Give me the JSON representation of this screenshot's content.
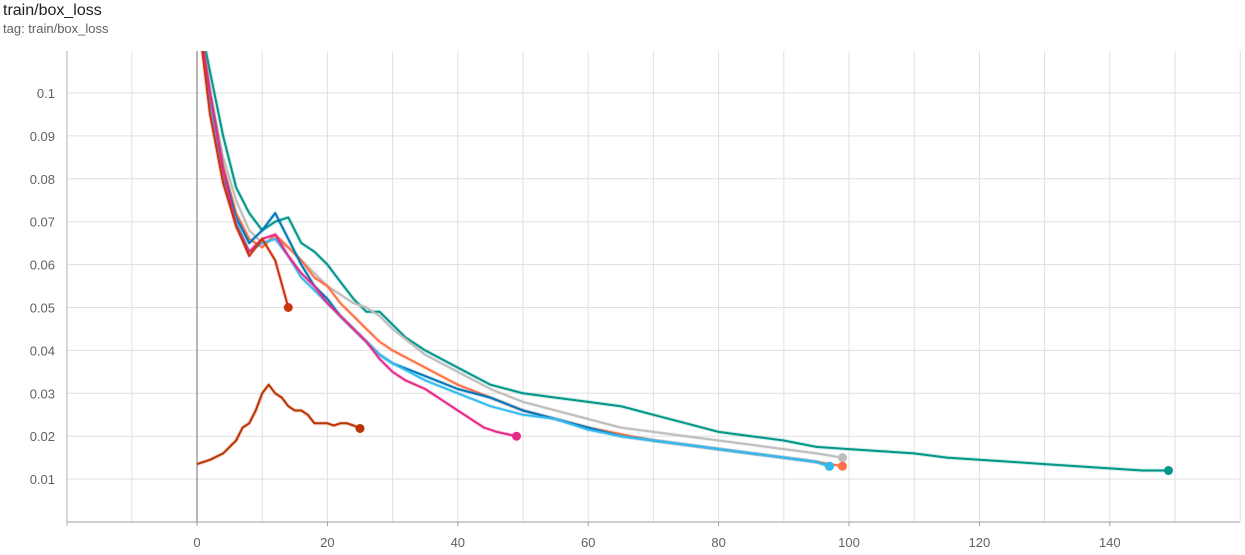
{
  "title": "train/box_loss",
  "tag": "tag: train/box_loss",
  "chart_data": {
    "type": "line",
    "xlim": [
      -20,
      160
    ],
    "ylim": [
      0,
      0.11
    ],
    "x_ticks": [
      0,
      20,
      40,
      60,
      80,
      100,
      120,
      140
    ],
    "x_tick_labels": [
      "0",
      "20",
      "40",
      "60",
      "80",
      "100",
      "120",
      "140"
    ],
    "y_ticks": [
      0.01,
      0.02,
      0.03,
      0.04,
      0.05,
      0.06,
      0.07,
      0.08,
      0.09,
      0.1
    ],
    "y_tick_labels": [
      "0.01",
      "0.02",
      "0.03",
      "0.04",
      "0.05",
      "0.06",
      "0.07",
      "0.08",
      "0.09",
      "0.1"
    ],
    "grid": true,
    "series": [
      {
        "color": "#009688",
        "x": [
          0,
          2,
          4,
          6,
          8,
          10,
          12,
          14,
          16,
          18,
          20,
          22,
          24,
          26,
          28,
          30,
          32,
          35,
          40,
          45,
          50,
          55,
          60,
          65,
          70,
          75,
          80,
          85,
          90,
          95,
          100,
          105,
          110,
          115,
          120,
          125,
          130,
          135,
          140,
          145,
          149
        ],
        "y": [
          0.12,
          0.105,
          0.09,
          0.078,
          0.072,
          0.068,
          0.07,
          0.071,
          0.065,
          0.063,
          0.06,
          0.056,
          0.052,
          0.049,
          0.049,
          0.046,
          0.043,
          0.04,
          0.036,
          0.032,
          0.03,
          0.029,
          0.028,
          0.027,
          0.025,
          0.023,
          0.021,
          0.02,
          0.019,
          0.0175,
          0.017,
          0.0165,
          0.016,
          0.015,
          0.0145,
          0.014,
          0.0135,
          0.013,
          0.0125,
          0.012,
          0.012
        ]
      },
      {
        "color": "#bdbdbd",
        "x": [
          0,
          2,
          4,
          6,
          8,
          10,
          12,
          14,
          16,
          18,
          20,
          22,
          24,
          26,
          28,
          30,
          35,
          40,
          45,
          50,
          55,
          60,
          65,
          70,
          75,
          80,
          85,
          90,
          95,
          99
        ],
        "y": [
          0.12,
          0.1,
          0.085,
          0.075,
          0.068,
          0.065,
          0.066,
          0.064,
          0.061,
          0.058,
          0.055,
          0.053,
          0.051,
          0.05,
          0.048,
          0.045,
          0.039,
          0.035,
          0.031,
          0.028,
          0.026,
          0.024,
          0.022,
          0.021,
          0.02,
          0.019,
          0.018,
          0.017,
          0.016,
          0.015
        ]
      },
      {
        "color": "#ff7043",
        "x": [
          0,
          2,
          4,
          6,
          8,
          10,
          12,
          14,
          16,
          18,
          20,
          22,
          24,
          26,
          28,
          30,
          35,
          40,
          45,
          50,
          55,
          60,
          65,
          70,
          75,
          80,
          85,
          90,
          95,
          99
        ],
        "y": [
          0.12,
          0.1,
          0.083,
          0.072,
          0.066,
          0.064,
          0.067,
          0.064,
          0.061,
          0.057,
          0.055,
          0.051,
          0.048,
          0.045,
          0.042,
          0.04,
          0.036,
          0.032,
          0.029,
          0.026,
          0.024,
          0.022,
          0.0205,
          0.019,
          0.018,
          0.017,
          0.016,
          0.015,
          0.014,
          0.013
        ]
      },
      {
        "color": "#0077bb",
        "x": [
          0,
          2,
          4,
          6,
          8,
          10,
          12,
          14,
          16,
          18,
          20,
          22,
          24,
          26,
          28,
          30,
          35,
          40,
          45,
          50,
          55,
          60,
          65,
          70,
          75,
          80,
          85,
          90,
          95,
          97
        ],
        "y": [
          0.12,
          0.1,
          0.082,
          0.071,
          0.065,
          0.068,
          0.072,
          0.066,
          0.06,
          0.055,
          0.052,
          0.048,
          0.045,
          0.042,
          0.039,
          0.037,
          0.034,
          0.031,
          0.029,
          0.026,
          0.024,
          0.022,
          0.02,
          0.019,
          0.018,
          0.017,
          0.016,
          0.015,
          0.014,
          0.013
        ]
      },
      {
        "color": "#33bbee",
        "x": [
          0,
          2,
          4,
          6,
          8,
          10,
          12,
          14,
          16,
          18,
          20,
          22,
          24,
          26,
          28,
          30,
          35,
          40,
          45,
          50,
          55,
          60,
          65,
          70,
          75,
          80,
          85,
          90,
          95,
          97
        ],
        "y": [
          0.12,
          0.098,
          0.08,
          0.07,
          0.063,
          0.065,
          0.066,
          0.062,
          0.057,
          0.054,
          0.051,
          0.048,
          0.045,
          0.042,
          0.039,
          0.037,
          0.033,
          0.03,
          0.027,
          0.025,
          0.024,
          0.0215,
          0.02,
          0.019,
          0.018,
          0.017,
          0.016,
          0.015,
          0.014,
          0.013
        ]
      },
      {
        "color": "#e7298a",
        "x": [
          0,
          2,
          4,
          6,
          8,
          10,
          12,
          14,
          16,
          18,
          20,
          22,
          24,
          26,
          28,
          30,
          32,
          35,
          38,
          40,
          42,
          44,
          46,
          49
        ],
        "y": [
          0.12,
          0.1,
          0.082,
          0.069,
          0.063,
          0.066,
          0.067,
          0.062,
          0.058,
          0.055,
          0.051,
          0.048,
          0.045,
          0.042,
          0.038,
          0.035,
          0.033,
          0.031,
          0.028,
          0.026,
          0.024,
          0.022,
          0.021,
          0.02
        ]
      },
      {
        "color": "#cc3311",
        "x": [
          0,
          2,
          4,
          6,
          8,
          10,
          12,
          14
        ],
        "y": [
          0.12,
          0.095,
          0.079,
          0.069,
          0.062,
          0.066,
          0.061,
          0.05
        ]
      },
      {
        "color": "#bb3300",
        "x": [
          0,
          2,
          4,
          6,
          7,
          8,
          9,
          10,
          11,
          12,
          13,
          14,
          15,
          16,
          17,
          18,
          19,
          20,
          21,
          22,
          23,
          24,
          25
        ],
        "y": [
          0.0135,
          0.0145,
          0.016,
          0.019,
          0.022,
          0.023,
          0.026,
          0.03,
          0.032,
          0.03,
          0.029,
          0.027,
          0.026,
          0.026,
          0.025,
          0.023,
          0.023,
          0.023,
          0.0225,
          0.023,
          0.023,
          0.0225,
          0.0218
        ]
      }
    ]
  }
}
